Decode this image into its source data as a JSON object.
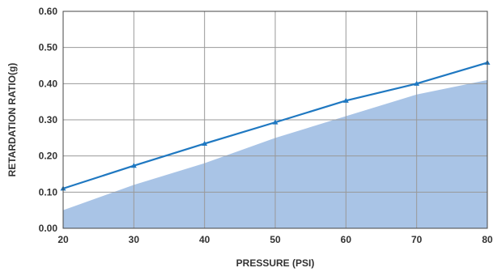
{
  "chart_data": {
    "type": "line",
    "title": "",
    "xlabel": "PRESSURE (PSI)",
    "ylabel": "RETARDATION RATIO(g)",
    "xlim": [
      20,
      80
    ],
    "ylim": [
      0,
      0.6
    ],
    "x_ticks": [
      "20",
      "30",
      "40",
      "50",
      "60",
      "70",
      "80"
    ],
    "y_ticks": [
      "0.00",
      "0.10",
      "0.20",
      "0.30",
      "0.40",
      "0.50",
      "0.60"
    ],
    "grid": true,
    "legend": "none",
    "series": [
      {
        "kind": "line",
        "marker": "triangle",
        "color": "#1f78c1",
        "x": [
          20,
          30,
          40,
          50,
          60,
          70,
          80
        ],
        "y": [
          0.11,
          0.173,
          0.234,
          0.293,
          0.353,
          0.4,
          0.458
        ]
      },
      {
        "kind": "area",
        "color": "#a9c4e6",
        "x": [
          20,
          30,
          40,
          50,
          60,
          70,
          80
        ],
        "y": [
          0.05,
          0.12,
          0.18,
          0.25,
          0.31,
          0.37,
          0.41
        ]
      }
    ]
  }
}
